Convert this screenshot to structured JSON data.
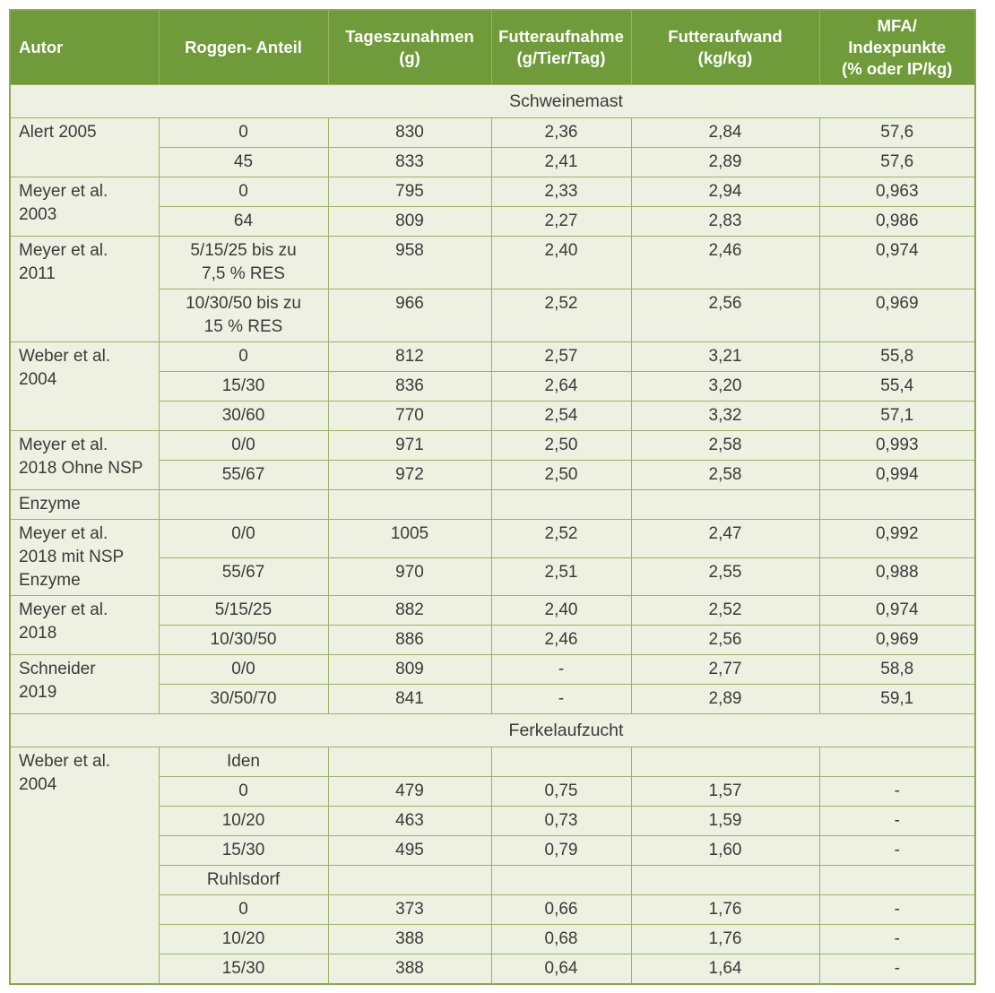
{
  "colors": {
    "header_bg": "#6F9B3A",
    "body_bg": "#EEF1E2",
    "border": "#9CB265",
    "outer_border": "#8CA850",
    "header_text": "#FFFFFF",
    "body_text": "#3A3A3A"
  },
  "table": {
    "columns": [
      {
        "label_lines": [
          "Autor"
        ]
      },
      {
        "label_lines": [
          "Roggen- Anteil"
        ]
      },
      {
        "label_lines": [
          "Tageszunahmen",
          "(g)"
        ]
      },
      {
        "label_lines": [
          "Futteraufnahme",
          "(g/Tier/Tag)"
        ]
      },
      {
        "label_lines": [
          "Futteraufwand",
          "(kg/kg)"
        ]
      },
      {
        "label_lines": [
          "MFA/",
          "Indexpunkte",
          "(% oder IP/kg)"
        ]
      }
    ],
    "sections": [
      {
        "title": "Schweinemast",
        "groups": [
          {
            "author": [
              "Alert 2005"
            ],
            "rows": [
              [
                "0",
                "830",
                "2,36",
                "2,84",
                "57,6"
              ],
              [
                "45",
                "833",
                "2,41",
                "2,89",
                "57,6"
              ]
            ]
          },
          {
            "author": [
              "Meyer et al.",
              "2003"
            ],
            "rows": [
              [
                "0",
                "795",
                "2,33",
                "2,94",
                "0,963"
              ],
              [
                "64",
                "809",
                "2,27",
                "2,83",
                "0,986"
              ]
            ]
          },
          {
            "author": [
              "Meyer et al.",
              "2011"
            ],
            "rows": [
              [
                "5/15/25 bis zu\n7,5 % RES",
                "958",
                "2,40",
                "2,46",
                "0,974"
              ],
              [
                "10/30/50 bis zu\n15 % RES",
                "966",
                "2,52",
                "2,56",
                "0,969"
              ]
            ]
          },
          {
            "author": [
              "Weber et al.",
              "2004"
            ],
            "rows": [
              [
                "0",
                "812",
                "2,57",
                "3,21",
                "55,8"
              ],
              [
                "15/30",
                "836",
                "2,64",
                "3,20",
                "55,4"
              ],
              [
                "30/60",
                "770",
                "2,54",
                "3,32",
                "57,1"
              ]
            ]
          },
          {
            "author": [
              "Meyer et al.",
              "2018 Ohne NSP"
            ],
            "rows": [
              [
                "0/0",
                "971",
                "2,50",
                "2,58",
                "0,993"
              ],
              [
                "55/67",
                "972",
                "2,50",
                "2,58",
                "0,994"
              ]
            ]
          },
          {
            "author": [
              "Enzyme"
            ],
            "rows": [
              [
                "",
                "",
                "",
                "",
                ""
              ]
            ]
          },
          {
            "author": [
              "Meyer et al.",
              "2018 mit NSP",
              "Enzyme"
            ],
            "rows": [
              [
                "0/0",
                "1005",
                "2,52",
                "2,47",
                "0,992"
              ],
              [
                "55/67",
                "970",
                "2,51",
                "2,55",
                "0,988"
              ]
            ]
          },
          {
            "author": [
              "Meyer et al.",
              "2018"
            ],
            "rows": [
              [
                "5/15/25",
                "882",
                "2,40",
                "2,52",
                "0,974"
              ],
              [
                "10/30/50",
                "886",
                "2,46",
                "2,56",
                "0,969"
              ]
            ]
          },
          {
            "author": [
              "Schneider",
              "2019"
            ],
            "rows": [
              [
                "0/0",
                "809",
                "-",
                "2,77",
                "58,8"
              ],
              [
                "30/50/70",
                "841",
                "-",
                "2,89",
                "59,1"
              ]
            ]
          }
        ]
      },
      {
        "title": "Ferkelaufzucht",
        "groups": [
          {
            "author": [
              "Weber et al.",
              "2004"
            ],
            "rows": [
              [
                "Iden",
                "",
                "",
                "",
                ""
              ],
              [
                "0",
                "479",
                "0,75",
                "1,57",
                "-"
              ],
              [
                "10/20",
                "463",
                "0,73",
                "1,59",
                "-"
              ],
              [
                "15/30",
                "495",
                "0,79",
                "1,60",
                "-"
              ],
              [
                "Ruhlsdorf",
                "",
                "",
                "",
                ""
              ],
              [
                "0",
                "373",
                "0,66",
                "1,76",
                "-"
              ],
              [
                "10/20",
                "388",
                "0,68",
                "1,76",
                "-"
              ],
              [
                "15/30",
                "388",
                "0,64",
                "1,64",
                "-"
              ]
            ]
          }
        ]
      }
    ]
  }
}
